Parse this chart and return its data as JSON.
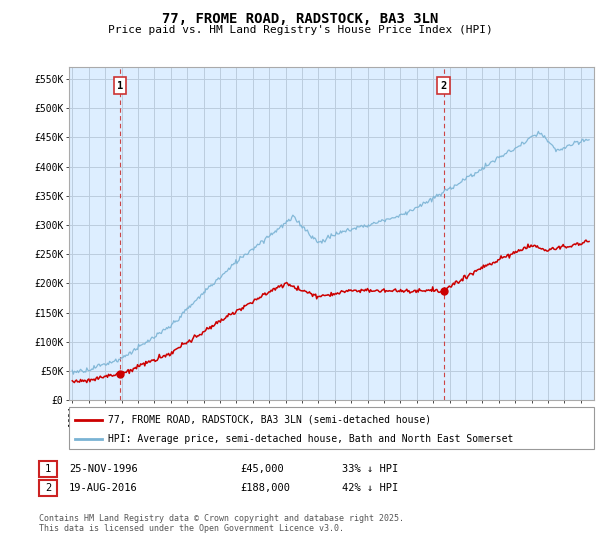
{
  "title": "77, FROME ROAD, RADSTOCK, BA3 3LN",
  "subtitle": "Price paid vs. HM Land Registry's House Price Index (HPI)",
  "ylim": [
    0,
    570000
  ],
  "yticks": [
    0,
    50000,
    100000,
    150000,
    200000,
    250000,
    300000,
    350000,
    400000,
    450000,
    500000,
    550000
  ],
  "ytick_labels": [
    "£0",
    "£50K",
    "£100K",
    "£150K",
    "£200K",
    "£250K",
    "£300K",
    "£350K",
    "£400K",
    "£450K",
    "£500K",
    "£550K"
  ],
  "hpi_color": "#7ab3d4",
  "price_color": "#cc0000",
  "dashed_line_color": "#cc4444",
  "marker1_year": 1996.9,
  "marker1_price": 45000,
  "marker2_year": 2016.63,
  "marker2_price": 188000,
  "legend_line1": "77, FROME ROAD, RADSTOCK, BA3 3LN (semi-detached house)",
  "legend_line2": "HPI: Average price, semi-detached house, Bath and North East Somerset",
  "table_row1": [
    "1",
    "25-NOV-1996",
    "£45,000",
    "33% ↓ HPI"
  ],
  "table_row2": [
    "2",
    "19-AUG-2016",
    "£188,000",
    "42% ↓ HPI"
  ],
  "footer": "Contains HM Land Registry data © Crown copyright and database right 2025.\nThis data is licensed under the Open Government Licence v3.0.",
  "bg_color": "#ffffff",
  "plot_bg_color": "#ddeeff",
  "grid_color": "#bbccdd"
}
